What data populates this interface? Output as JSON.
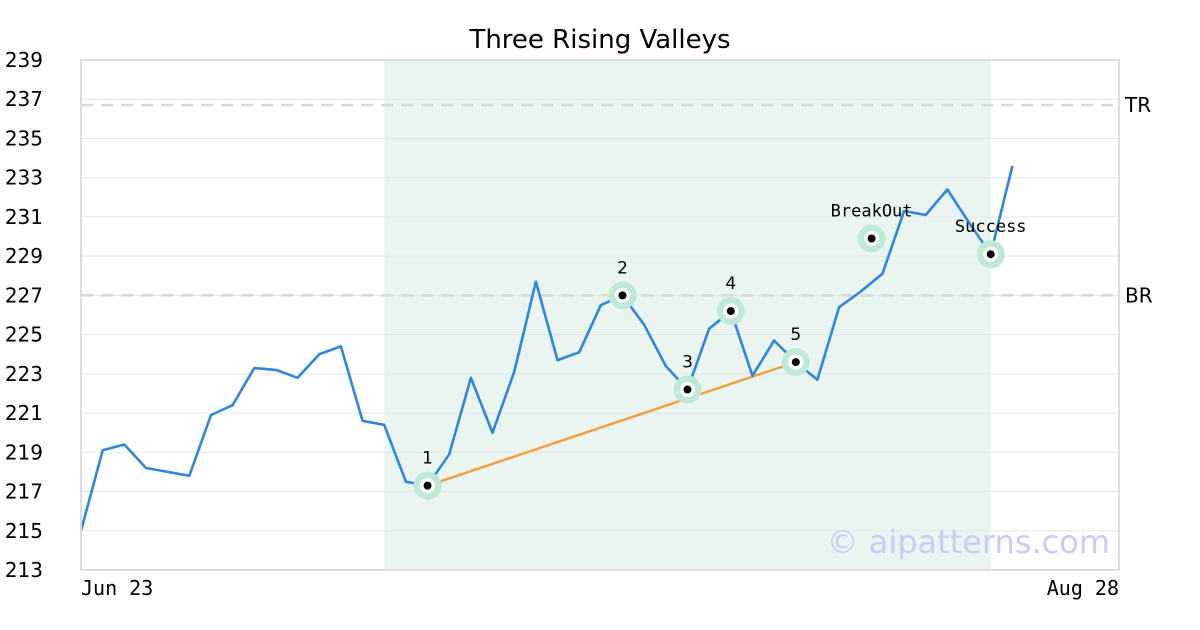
{
  "chart_data": {
    "type": "line",
    "title": "Three Rising Valleys",
    "xlabel": "",
    "ylabel": "",
    "x_labels": [
      "Jun 23",
      "Aug 28"
    ],
    "ylim": [
      213,
      239
    ],
    "yticks": [
      213,
      215,
      217,
      219,
      221,
      223,
      225,
      227,
      229,
      231,
      233,
      235,
      237,
      239
    ],
    "grid": true,
    "series": [
      {
        "values": [
          215.0,
          219.1,
          219.4,
          218.2,
          218.0,
          217.8,
          220.9,
          221.4,
          223.3,
          223.2,
          222.8,
          224.0,
          224.4,
          220.6,
          220.4,
          217.5,
          217.3,
          218.9,
          222.8,
          220.0,
          223.1,
          227.7,
          223.7,
          224.1,
          226.5,
          227.0,
          225.5,
          223.4,
          222.2,
          225.3,
          226.2,
          222.9,
          224.7,
          223.6,
          222.7,
          226.4,
          227.2,
          228.1,
          231.3,
          231.1,
          232.4,
          230.7,
          229.1,
          233.6
        ],
        "color": "#2e86de"
      }
    ],
    "shaded_region": {
      "start_index": 14,
      "end_index": 42,
      "color": "#eaf5f1"
    },
    "reference_lines": [
      {
        "label": "TR",
        "y": 236.7
      },
      {
        "label": "BR",
        "y": 227.0
      }
    ],
    "support_line": {
      "from_index": 16,
      "to_index": 33,
      "from_y": 217.3,
      "to_y": 223.6,
      "color": "#f5a040"
    },
    "points": [
      {
        "label": "1",
        "index": 16,
        "y": 217.3
      },
      {
        "label": "2",
        "index": 25,
        "y": 227.0
      },
      {
        "label": "3",
        "index": 28,
        "y": 222.2
      },
      {
        "label": "4",
        "index": 30,
        "y": 226.2
      },
      {
        "label": "5",
        "index": 33,
        "y": 223.6
      },
      {
        "label": "BreakOut",
        "index": 36.5,
        "y": 229.9
      },
      {
        "label": "Success",
        "index": 42,
        "y": 229.1
      }
    ],
    "watermark": "© aipatterns.com"
  }
}
